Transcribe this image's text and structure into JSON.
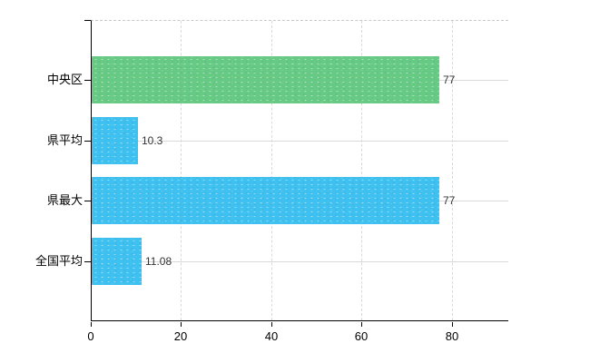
{
  "chart_data": {
    "type": "bar",
    "orientation": "horizontal",
    "title": "",
    "categories": [
      "中央区",
      "県平均",
      "県最大",
      "全国平均"
    ],
    "values": [
      77,
      10.3,
      77,
      11.08
    ],
    "value_labels": [
      "77",
      "10.3",
      "77",
      "11.08"
    ],
    "series": [
      {
        "name": "中央区",
        "value": 77,
        "color": "#66ca85"
      },
      {
        "name": "県平均",
        "value": 10.3,
        "color": "#3ec1f0"
      },
      {
        "name": "県最大",
        "value": 77,
        "color": "#3ec1f0"
      },
      {
        "name": "全国平均",
        "value": 11.08,
        "color": "#3ec1f0"
      }
    ],
    "bar_colors": [
      "#66ca85",
      "#3ec1f0",
      "#3ec1f0",
      "#3ec1f0"
    ],
    "x_tick_labels": [
      "0",
      "20",
      "40",
      "60",
      "80"
    ],
    "x_tick_values": [
      0,
      20,
      40,
      60,
      80
    ],
    "xlim": [
      0,
      92.5
    ],
    "xlabel": "",
    "ylabel": "",
    "grid": "on",
    "legend": "none"
  },
  "colors": {
    "bar_green": "#66ca85",
    "bar_blue": "#3ec1f0",
    "axis": "#000000",
    "gridline": "#d9d9d9",
    "plot_top_border": "#c9c9c9",
    "value_label_text": "#333333",
    "category_label_text": "#000000",
    "background": "#ffffff"
  }
}
